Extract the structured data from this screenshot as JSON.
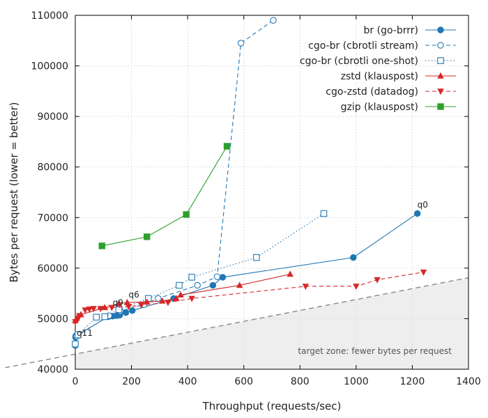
{
  "chart_data": {
    "type": "line",
    "xlabel": "Throughput (requests/sec)",
    "ylabel": "Bytes per request (lower = better)",
    "xlim": [
      0,
      1400
    ],
    "ylim": [
      40000,
      110000
    ],
    "xticks": [
      0,
      200,
      400,
      600,
      800,
      1000,
      1200,
      1400
    ],
    "yticks": [
      40000,
      50000,
      60000,
      70000,
      80000,
      90000,
      100000,
      110000
    ],
    "grid": true,
    "legend_position": "top-right",
    "target_zone": {
      "label": "target zone: fewer bytes per request",
      "line_points": [
        [
          -250,
          40300
        ],
        [
          1400,
          58100
        ]
      ],
      "color": "#eeeeee"
    },
    "annotations": [
      {
        "text": "q0",
        "x": 1218,
        "y": 72000
      },
      {
        "text": "q6",
        "x": 190,
        "y": 54200
      },
      {
        "text": "q9",
        "x": 133,
        "y": 52600
      },
      {
        "text": "q11",
        "x": 5,
        "y": 46600
      }
    ],
    "series": [
      {
        "name": "br (go-brrr)",
        "color": "#1f77b4",
        "marker": "circle-filled",
        "dash": "solid",
        "points": [
          [
            0,
            44700
          ],
          [
            1,
            46300
          ],
          [
            2,
            46600
          ],
          [
            118,
            50400
          ],
          [
            133,
            50500
          ],
          [
            148,
            50600
          ],
          [
            158,
            50700
          ],
          [
            180,
            51200
          ],
          [
            203,
            51600
          ],
          [
            350,
            54000
          ],
          [
            490,
            56600
          ],
          [
            525,
            58200
          ],
          [
            990,
            62100
          ],
          [
            1218,
            70800
          ]
        ]
      },
      {
        "name": "cgo-br (cbrotli stream)",
        "color": "#1f77b4",
        "marker": "circle-open",
        "dash": "dashed",
        "points": [
          [
            0,
            44800
          ],
          [
            5,
            46500
          ],
          [
            120,
            50600
          ],
          [
            160,
            51500
          ],
          [
            245,
            52800
          ],
          [
            295,
            54000
          ],
          [
            435,
            56600
          ],
          [
            505,
            58300
          ],
          [
            590,
            104500
          ],
          [
            705,
            109000
          ]
        ]
      },
      {
        "name": "cgo-br (cbrotli one-shot)",
        "color": "#1f77b4",
        "marker": "square-open",
        "dash": "dotted",
        "points": [
          [
            0,
            45000
          ],
          [
            10,
            46800
          ],
          [
            75,
            50300
          ],
          [
            105,
            50400
          ],
          [
            155,
            51800
          ],
          [
            260,
            54000
          ],
          [
            370,
            56600
          ],
          [
            415,
            58200
          ],
          [
            645,
            62100
          ],
          [
            885,
            70800
          ]
        ]
      },
      {
        "name": "zstd (klauspost)",
        "color": "#d62728",
        "marker": "triangle-up",
        "dash": "solid",
        "points": [
          [
            0,
            49600
          ],
          [
            5,
            50100
          ],
          [
            20,
            50800
          ],
          [
            105,
            52200
          ],
          [
            155,
            53000
          ],
          [
            185,
            53200
          ],
          [
            255,
            53300
          ],
          [
            310,
            53500
          ],
          [
            360,
            54000
          ],
          [
            375,
            54700
          ],
          [
            585,
            56600
          ],
          [
            765,
            58800
          ]
        ]
      },
      {
        "name": "cgo-zstd (datadog)",
        "color": "#d62728",
        "marker": "triangle-down",
        "dash": "dashed",
        "points": [
          [
            0,
            49400
          ],
          [
            10,
            50000
          ],
          [
            15,
            50600
          ],
          [
            35,
            51700
          ],
          [
            50,
            51900
          ],
          [
            65,
            52000
          ],
          [
            90,
            52000
          ],
          [
            130,
            52200
          ],
          [
            190,
            52400
          ],
          [
            235,
            52700
          ],
          [
            330,
            53200
          ],
          [
            415,
            54000
          ],
          [
            820,
            56400
          ],
          [
            1000,
            56400
          ],
          [
            1075,
            57700
          ],
          [
            1240,
            59200
          ]
        ]
      },
      {
        "name": "gzip (klauspost)",
        "color": "#2ca02c",
        "marker": "square-filled",
        "dash": "solid",
        "points": [
          [
            95,
            64400
          ],
          [
            255,
            66200
          ],
          [
            395,
            70600
          ],
          [
            540,
            84100
          ]
        ]
      }
    ]
  }
}
